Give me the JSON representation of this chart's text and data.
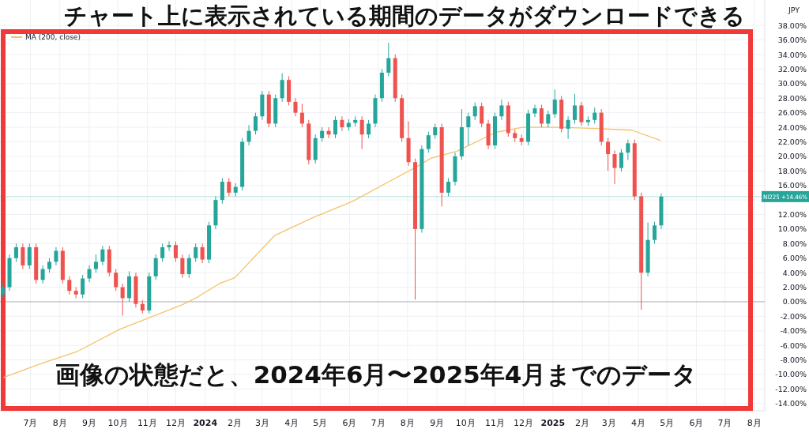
{
  "chart_data": {
    "type": "candlestick",
    "title": "チャート上に表示されている期間のデータがダウンロードできる",
    "annotations": [
      "画像の状態だと、2024年6月〜2025年4月までのデータ",
      "JPY"
    ],
    "grid": true,
    "legend": "top left",
    "xlim": [
      "2023-05-30",
      "2025-08-12"
    ],
    "ylim": [
      -15,
      41.5
    ],
    "xticks": [
      {
        "value": "2023-07-01",
        "label": "7月"
      },
      {
        "value": "2023-08-01",
        "label": "8月"
      },
      {
        "value": "2023-09-01",
        "label": "9月"
      },
      {
        "value": "2023-10-01",
        "label": "10月"
      },
      {
        "value": "2023-11-01",
        "label": "11月"
      },
      {
        "value": "2023-12-01",
        "label": "12月"
      },
      {
        "value": "2024-01-01",
        "label": "2024"
      },
      {
        "value": "2024-02-01",
        "label": "2月"
      },
      {
        "value": "2024-03-01",
        "label": "3月"
      },
      {
        "value": "2024-04-01",
        "label": "4月"
      },
      {
        "value": "2024-05-01",
        "label": "5月"
      },
      {
        "value": "2024-06-01",
        "label": "6月"
      },
      {
        "value": "2024-07-01",
        "label": "7月"
      },
      {
        "value": "2024-08-01",
        "label": "8月"
      },
      {
        "value": "2024-09-01",
        "label": "9月"
      },
      {
        "value": "2024-10-01",
        "label": "10月"
      },
      {
        "value": "2024-11-01",
        "label": "11月"
      },
      {
        "value": "2024-12-01",
        "label": "12月"
      },
      {
        "value": "2025-01-01",
        "label": "2025"
      },
      {
        "value": "2025-02-01",
        "label": "2月"
      },
      {
        "value": "2025-03-01",
        "label": "3月"
      },
      {
        "value": "2025-04-01",
        "label": "4月"
      },
      {
        "value": "2025-05-01",
        "label": "5月"
      },
      {
        "value": "2025-06-01",
        "label": "6月"
      },
      {
        "value": "2025-07-01",
        "label": "7月"
      },
      {
        "value": "2025-08-01",
        "label": "8月"
      }
    ],
    "yticks": [
      {
        "value": -14,
        "label": "-14.00%"
      },
      {
        "value": -12,
        "label": "-12.00%"
      },
      {
        "value": -10,
        "label": "-10.00%"
      },
      {
        "value": -8,
        "label": "-8.00%"
      },
      {
        "value": -6,
        "label": "-6.00%"
      },
      {
        "value": -4,
        "label": "-4.00%"
      },
      {
        "value": -2,
        "label": "-2.00%"
      },
      {
        "value": 0,
        "label": "0.00%"
      },
      {
        "value": 2,
        "label": "2.00%"
      },
      {
        "value": 4,
        "label": "4.00%"
      },
      {
        "value": 6,
        "label": "6.00%"
      },
      {
        "value": 8,
        "label": "8.00%"
      },
      {
        "value": 10,
        "label": "10.00%"
      },
      {
        "value": 12,
        "label": "12.00%"
      },
      {
        "value": 14,
        "label": null
      },
      {
        "value": 16,
        "label": "16.00%"
      },
      {
        "value": 18,
        "label": "18.00%"
      },
      {
        "value": 20,
        "label": "20.00%"
      },
      {
        "value": 22,
        "label": "22.00%"
      },
      {
        "value": 24,
        "label": "24.00%"
      },
      {
        "value": 26,
        "label": "26.00%"
      },
      {
        "value": 28,
        "label": "28.00%"
      },
      {
        "value": 30,
        "label": "30.00%"
      },
      {
        "value": 32,
        "label": "32.00%"
      },
      {
        "value": 34,
        "label": "34.00%"
      },
      {
        "value": 36,
        "label": "36.00%"
      },
      {
        "value": 38,
        "label": "38.00%"
      }
    ],
    "ref_lines": [
      {
        "axis": "y",
        "value": 0,
        "color": "#b2b5be"
      },
      {
        "axis": "y",
        "value": 14.46,
        "label": "NI225 +14.46%",
        "color": "#26a69a"
      }
    ],
    "x": [
      "2023-06-02",
      "2023-06-09",
      "2023-06-16",
      "2023-06-23",
      "2023-06-30",
      "2023-07-07",
      "2023-07-14",
      "2023-07-21",
      "2023-07-28",
      "2023-08-04",
      "2023-08-11",
      "2023-08-18",
      "2023-08-25",
      "2023-09-01",
      "2023-09-08",
      "2023-09-15",
      "2023-09-22",
      "2023-09-29",
      "2023-10-06",
      "2023-10-13",
      "2023-10-20",
      "2023-10-27",
      "2023-11-03",
      "2023-11-10",
      "2023-11-17",
      "2023-11-24",
      "2023-12-01",
      "2023-12-08",
      "2023-12-15",
      "2023-12-22",
      "2023-12-29",
      "2024-01-05",
      "2024-01-12",
      "2024-01-19",
      "2024-01-26",
      "2024-02-02",
      "2024-02-09",
      "2024-02-16",
      "2024-02-23",
      "2024-03-01",
      "2024-03-08",
      "2024-03-15",
      "2024-03-22",
      "2024-03-29",
      "2024-04-05",
      "2024-04-12",
      "2024-04-19",
      "2024-04-26",
      "2024-05-03",
      "2024-05-10",
      "2024-05-17",
      "2024-05-24",
      "2024-05-31",
      "2024-06-07",
      "2024-06-14",
      "2024-06-21",
      "2024-06-28",
      "2024-07-05",
      "2024-07-12",
      "2024-07-19",
      "2024-07-26",
      "2024-08-02",
      "2024-08-09",
      "2024-08-16",
      "2024-08-23",
      "2024-08-30",
      "2024-09-06",
      "2024-09-13",
      "2024-09-20",
      "2024-09-27",
      "2024-10-04",
      "2024-10-11",
      "2024-10-18",
      "2024-10-25",
      "2024-11-01",
      "2024-11-08",
      "2024-11-15",
      "2024-11-22",
      "2024-11-29",
      "2024-12-06",
      "2024-12-13",
      "2024-12-20",
      "2024-12-27",
      "2025-01-03",
      "2025-01-10",
      "2025-01-17",
      "2025-01-24",
      "2025-01-31",
      "2025-02-07",
      "2025-02-14",
      "2025-02-21",
      "2025-02-28",
      "2025-03-07",
      "2025-03-14",
      "2025-03-21",
      "2025-03-28",
      "2025-04-04",
      "2025-04-11",
      "2025-04-18",
      "2025-04-25"
    ],
    "ohlc": [
      [
        1.0,
        2.5,
        0.5,
        2.0
      ],
      [
        2.0,
        6.5,
        1.5,
        6.0
      ],
      [
        6.0,
        8.0,
        5.5,
        7.5
      ],
      [
        7.5,
        8.0,
        4.5,
        5.0
      ],
      [
        5.0,
        8.0,
        4.5,
        7.5
      ],
      [
        7.5,
        8.0,
        2.5,
        3.0
      ],
      [
        3.0,
        5.0,
        2.5,
        4.5
      ],
      [
        4.5,
        6.0,
        4.0,
        5.5
      ],
      [
        5.5,
        7.5,
        5.0,
        7.0
      ],
      [
        7.0,
        7.5,
        2.5,
        3.0
      ],
      [
        3.0,
        3.5,
        1.0,
        1.5
      ],
      [
        1.5,
        2.0,
        0.5,
        1.0
      ],
      [
        1.0,
        3.7,
        0.5,
        3.2
      ],
      [
        3.2,
        5.0,
        2.7,
        4.5
      ],
      [
        4.5,
        6.5,
        4.0,
        5.5
      ],
      [
        5.5,
        7.7,
        5.0,
        7.2
      ],
      [
        7.2,
        7.7,
        3.5,
        4.0
      ],
      [
        4.0,
        4.5,
        1.5,
        2.0
      ],
      [
        2.0,
        2.5,
        -1.9,
        0.5
      ],
      [
        0.5,
        4.2,
        0.0,
        3.5
      ],
      [
        3.5,
        4.0,
        -0.8,
        -0.3
      ],
      [
        -0.3,
        0.2,
        -1.6,
        -1.2
      ],
      [
        -1.2,
        4.0,
        -1.6,
        3.5
      ],
      [
        3.5,
        6.5,
        3.0,
        6.0
      ],
      [
        6.0,
        8.0,
        5.5,
        7.5
      ],
      [
        7.5,
        8.3,
        7.0,
        7.8
      ],
      [
        7.8,
        8.3,
        5.5,
        6.0
      ],
      [
        6.0,
        6.5,
        3.3,
        3.8
      ],
      [
        3.8,
        6.5,
        3.3,
        6.0
      ],
      [
        6.0,
        8.0,
        5.5,
        7.5
      ],
      [
        7.5,
        8.0,
        5.3,
        5.8
      ],
      [
        5.8,
        11.0,
        5.3,
        10.5
      ],
      [
        10.5,
        14.5,
        10.0,
        14.0
      ],
      [
        14.0,
        17.0,
        13.5,
        16.5
      ],
      [
        16.5,
        17.0,
        14.5,
        15.0
      ],
      [
        15.0,
        16.3,
        14.5,
        15.8
      ],
      [
        15.8,
        22.5,
        15.3,
        22.0
      ],
      [
        22.0,
        24.3,
        21.5,
        23.5
      ],
      [
        23.5,
        26.0,
        23.0,
        25.5
      ],
      [
        25.5,
        29.0,
        25.0,
        28.5
      ],
      [
        28.5,
        29.0,
        24.0,
        24.5
      ],
      [
        24.5,
        28.5,
        24.0,
        28.0
      ],
      [
        28.0,
        31.4,
        27.5,
        30.5
      ],
      [
        30.5,
        31.0,
        27.0,
        27.5
      ],
      [
        27.5,
        28.0,
        25.5,
        26.0
      ],
      [
        26.0,
        27.2,
        24.0,
        24.5
      ],
      [
        24.5,
        25.0,
        18.9,
        19.5
      ],
      [
        19.5,
        23.0,
        19.0,
        22.5
      ],
      [
        22.5,
        24.0,
        22.0,
        23.5
      ],
      [
        23.5,
        24.0,
        22.5,
        23.0
      ],
      [
        23.0,
        25.5,
        22.5,
        25.0
      ],
      [
        25.0,
        25.5,
        23.5,
        24.0
      ],
      [
        24.0,
        25.1,
        23.5,
        24.6
      ],
      [
        24.6,
        25.5,
        24.1,
        25.0
      ],
      [
        25.0,
        25.5,
        21.0,
        23.0
      ],
      [
        23.0,
        25.0,
        22.5,
        24.5
      ],
      [
        24.5,
        28.5,
        24.0,
        28.0
      ],
      [
        28.0,
        32.0,
        27.5,
        31.5
      ],
      [
        31.5,
        35.6,
        31.0,
        33.5
      ],
      [
        33.5,
        34.0,
        27.5,
        28.0
      ],
      [
        28.0,
        28.5,
        22.0,
        22.5
      ],
      [
        22.5,
        24.8,
        18.7,
        19.2
      ],
      [
        19.2,
        19.7,
        0.3,
        10.0
      ],
      [
        10.0,
        21.5,
        9.5,
        21.0
      ],
      [
        21.0,
        23.4,
        20.5,
        22.9
      ],
      [
        22.9,
        24.5,
        22.4,
        24.0
      ],
      [
        24.0,
        24.5,
        13.1,
        15.0
      ],
      [
        15.0,
        17.0,
        14.5,
        16.5
      ],
      [
        16.5,
        20.5,
        16.0,
        20.0
      ],
      [
        20.0,
        26.5,
        19.5,
        24.0
      ],
      [
        24.0,
        26.0,
        21.5,
        25.5
      ],
      [
        25.5,
        27.4,
        25.0,
        26.9
      ],
      [
        26.9,
        27.4,
        24.0,
        24.5
      ],
      [
        24.5,
        25.0,
        21.0,
        21.5
      ],
      [
        21.5,
        26.0,
        21.0,
        25.5
      ],
      [
        25.5,
        27.8,
        25.0,
        27.0
      ],
      [
        27.0,
        27.5,
        22.7,
        23.2
      ],
      [
        23.2,
        23.7,
        22.0,
        22.5
      ],
      [
        22.5,
        23.0,
        21.5,
        22.0
      ],
      [
        22.0,
        26.4,
        21.5,
        25.9
      ],
      [
        25.9,
        27.1,
        25.4,
        26.6
      ],
      [
        26.6,
        27.1,
        24.0,
        24.5
      ],
      [
        24.5,
        26.3,
        24.0,
        25.8
      ],
      [
        25.8,
        29.2,
        25.3,
        27.8
      ],
      [
        27.8,
        28.3,
        23.3,
        23.8
      ],
      [
        23.8,
        25.5,
        22.4,
        25.0
      ],
      [
        25.0,
        28.6,
        24.5,
        27.0
      ],
      [
        27.0,
        27.5,
        24.2,
        24.7
      ],
      [
        24.7,
        25.5,
        24.2,
        25.0
      ],
      [
        25.0,
        26.7,
        24.5,
        26.0
      ],
      [
        26.0,
        26.5,
        21.5,
        22.0
      ],
      [
        22.0,
        22.5,
        18.0,
        20.3
      ],
      [
        20.3,
        20.8,
        16.2,
        18.4
      ],
      [
        18.4,
        21.0,
        17.9,
        20.5
      ],
      [
        20.5,
        22.3,
        19.5,
        21.8
      ],
      [
        21.8,
        22.3,
        14.0,
        14.5
      ],
      [
        14.5,
        15.0,
        -1.1,
        4.0
      ],
      [
        4.0,
        10.9,
        3.5,
        8.5
      ],
      [
        8.5,
        11.0,
        8.0,
        10.5
      ],
      [
        10.5,
        14.9,
        10.0,
        14.46
      ]
    ],
    "series": [
      {
        "name": "MA (200, close)",
        "type": "line",
        "color": "#f5c26b",
        "x": [
          "2023-06-03",
          "2023-07-10",
          "2023-08-20",
          "2023-10-03",
          "2023-12-08",
          "2023-12-22",
          "2024-01-16",
          "2024-02-01",
          "2024-03-14",
          "2024-04-24",
          "2024-06-04",
          "2024-07-15",
          "2024-08-11",
          "2024-08-25",
          "2024-09-22",
          "2024-11-02",
          "2024-11-30",
          "2025-01-10",
          "2025-02-20",
          "2025-03-25",
          "2025-04-24"
        ],
        "values": [
          -10.4,
          -8.6,
          -6.8,
          -3.8,
          -0.4,
          0.5,
          2.5,
          3.3,
          9.1,
          11.6,
          13.8,
          16.7,
          18.6,
          19.7,
          20.7,
          23.3,
          24.0,
          24.0,
          23.8,
          23.6,
          22.2
        ]
      }
    ]
  }
}
